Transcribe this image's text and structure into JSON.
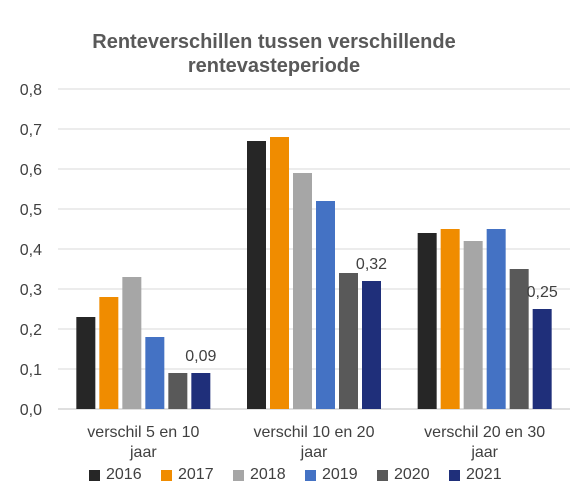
{
  "chart_data": {
    "type": "bar",
    "title_lines": [
      "Renteverschillen tussen verschillende",
      "rentevasteperiode"
    ],
    "categories": [
      [
        "verschil 5 en 10",
        "jaar"
      ],
      [
        "verschil 10 en 20",
        "jaar"
      ],
      [
        "verschil 20 en 30",
        "jaar"
      ]
    ],
    "series": [
      {
        "name": "2016",
        "color": "#262626",
        "values": [
          0.23,
          0.67,
          0.44
        ]
      },
      {
        "name": "2017",
        "color": "#F08C00",
        "values": [
          0.28,
          0.68,
          0.45
        ]
      },
      {
        "name": "2018",
        "color": "#A6A6A6",
        "values": [
          0.33,
          0.59,
          0.42
        ]
      },
      {
        "name": "2019",
        "color": "#4472C4",
        "values": [
          0.18,
          0.52,
          0.45
        ]
      },
      {
        "name": "2020",
        "color": "#595959",
        "values": [
          0.09,
          0.34,
          0.35
        ]
      },
      {
        "name": "2021",
        "color": "#1F2F7A",
        "values": [
          0.09,
          0.32,
          0.25
        ]
      }
    ],
    "data_labels": {
      "series": "2021",
      "texts": [
        "0,09",
        "0,32",
        "0,25"
      ]
    },
    "y_ticks": [
      "0,0",
      "0,1",
      "0,2",
      "0,3",
      "0,4",
      "0,5",
      "0,6",
      "0,7",
      "0,8"
    ],
    "ylim": [
      0,
      0.8
    ],
    "grid": true,
    "legend_position": "bottom"
  }
}
